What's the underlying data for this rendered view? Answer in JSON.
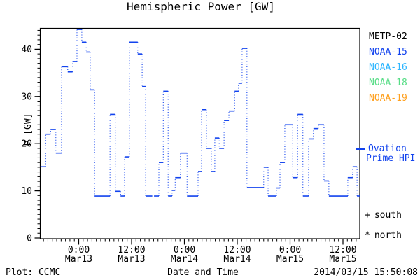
{
  "title": "Hemispheric Power [GW]",
  "axes": {
    "y_label": "P [GW]",
    "x_label": "Date and Time"
  },
  "footer": {
    "source": "Plot: CCMC",
    "timestamp": "2014/03/15 15:50:08"
  },
  "legend": {
    "satellites": [
      {
        "label": "METP-02",
        "color": "#000000"
      },
      {
        "label": "NOAA-15",
        "color": "#1243ee"
      },
      {
        "label": "NOAA-16",
        "color": "#2eb6ff"
      },
      {
        "label": "NOAA-18",
        "color": "#57dd86"
      },
      {
        "label": "NOAA-19",
        "color": "#ffa01e"
      }
    ],
    "ovation": {
      "label_line1": "Ovation",
      "label_line2": "Prime HPI",
      "color": "#1243ee"
    },
    "markers": [
      {
        "symbol": "+",
        "label": "south"
      },
      {
        "symbol": "*",
        "label": "north"
      }
    ]
  },
  "chart_data": {
    "type": "line",
    "style": "steps-with-dotted-risers",
    "title": "Hemispheric Power [GW]",
    "xlabel": "Date and Time",
    "ylabel": "P [GW]",
    "line_color": "#1243ee",
    "grid": false,
    "legend_position": "right-outside",
    "x_unit": "hours since 2014-03-13 00:00 UT",
    "xlim": [
      -8.8,
      63.9
    ],
    "ylim": [
      0,
      44.5
    ],
    "y_major_ticks": [
      0,
      10,
      20,
      30,
      40
    ],
    "y_minor_step_gw": 1,
    "x_major_ticks": [
      0,
      12,
      24,
      36,
      48,
      60
    ],
    "x_minor_step_hours": 1,
    "x_tick_labels": [
      [
        "0:00",
        "Mar13"
      ],
      [
        "12:00",
        "Mar13"
      ],
      [
        "0:00",
        "Mar14"
      ],
      [
        "12:00",
        "Mar14"
      ],
      [
        "0:00",
        "Mar15"
      ],
      [
        "12:00",
        "Mar15"
      ]
    ],
    "segments_t1_t2_gw": [
      [
        -8.7,
        -7.5,
        15.1
      ],
      [
        -7.5,
        -6.4,
        22.0
      ],
      [
        -6.4,
        -5.2,
        23.0
      ],
      [
        -5.2,
        -3.9,
        18.0
      ],
      [
        -3.9,
        -2.5,
        36.3
      ],
      [
        -2.5,
        -1.4,
        35.2
      ],
      [
        -1.4,
        -0.4,
        37.4
      ],
      [
        -0.4,
        0.7,
        44.2
      ],
      [
        0.7,
        1.7,
        41.5
      ],
      [
        1.7,
        2.6,
        39.4
      ],
      [
        2.6,
        3.6,
        31.4
      ],
      [
        3.6,
        7.1,
        8.9
      ],
      [
        7.1,
        8.3,
        26.2
      ],
      [
        8.3,
        9.5,
        9.9
      ],
      [
        9.5,
        10.4,
        8.9
      ],
      [
        10.4,
        11.5,
        17.2
      ],
      [
        11.5,
        13.4,
        41.5
      ],
      [
        13.4,
        14.4,
        39.0
      ],
      [
        14.4,
        15.2,
        32.1
      ],
      [
        15.2,
        16.7,
        8.9
      ],
      [
        17.1,
        18.2,
        8.9
      ],
      [
        18.2,
        19.2,
        16.0
      ],
      [
        19.2,
        20.3,
        31.1
      ],
      [
        20.3,
        21.2,
        8.9
      ],
      [
        21.2,
        21.9,
        10.1
      ],
      [
        21.9,
        23.1,
        12.8
      ],
      [
        23.1,
        24.6,
        18.0
      ],
      [
        24.6,
        27.1,
        8.9
      ],
      [
        27.1,
        27.9,
        14.1
      ],
      [
        27.9,
        29.0,
        27.2
      ],
      [
        29.0,
        30.1,
        19.0
      ],
      [
        30.1,
        30.9,
        14.1
      ],
      [
        30.9,
        31.9,
        21.2
      ],
      [
        31.9,
        33.0,
        19.0
      ],
      [
        33.0,
        34.1,
        24.9
      ],
      [
        34.1,
        35.4,
        26.9
      ],
      [
        35.4,
        36.3,
        31.1
      ],
      [
        36.3,
        37.1,
        32.8
      ],
      [
        37.1,
        38.2,
        40.2
      ],
      [
        38.2,
        42.0,
        10.7
      ],
      [
        42.0,
        43.0,
        15.0
      ],
      [
        43.0,
        44.9,
        8.9
      ],
      [
        44.9,
        45.7,
        10.6
      ],
      [
        45.7,
        46.8,
        16.0
      ],
      [
        46.8,
        48.6,
        24.0
      ],
      [
        48.6,
        49.7,
        12.8
      ],
      [
        49.7,
        50.9,
        26.2
      ],
      [
        50.9,
        52.2,
        8.9
      ],
      [
        52.2,
        53.3,
        21.0
      ],
      [
        53.3,
        54.4,
        23.2
      ],
      [
        54.4,
        55.7,
        24.0
      ],
      [
        55.7,
        56.8,
        12.1
      ],
      [
        56.8,
        61.1,
        8.9
      ],
      [
        61.1,
        62.2,
        12.8
      ],
      [
        62.2,
        63.2,
        15.1
      ],
      [
        63.2,
        63.8,
        8.9
      ]
    ]
  }
}
